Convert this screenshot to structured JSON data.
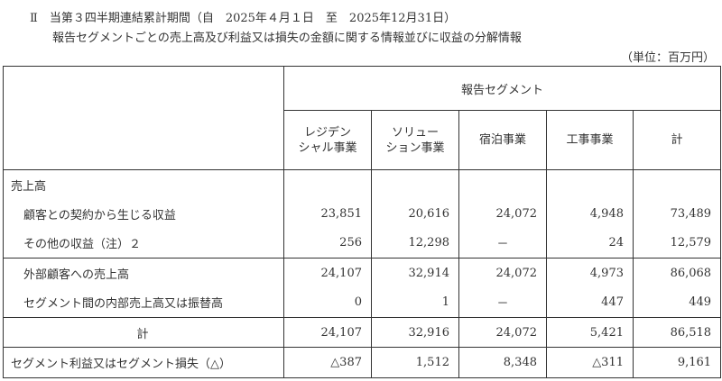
{
  "heading": {
    "line1": "Ⅱ　当第３四半期連結累計期間（自　2025年４月１日　至　2025年12月31日）",
    "line2": "報告セグメントごとの売上高及び利益又は損失の金額に関する情報並びに収益の分解情報",
    "unit": "（単位：百万円）"
  },
  "table": {
    "group_header": "報告セグメント",
    "columns": [
      "レジデン\nシャル事業",
      "ソリュー\nション事業",
      "宿泊事業",
      "工事事業",
      "計"
    ],
    "section_label": "売上高",
    "rows": [
      {
        "label": "顧客との契約から生じる収益",
        "values": [
          "23,851",
          "20,616",
          "24,072",
          "4,948",
          "73,489"
        ]
      },
      {
        "label": "その他の収益（注）２",
        "values": [
          "256",
          "12,298",
          "－",
          "24",
          "12,579"
        ]
      },
      {
        "label": "外部顧客への売上高",
        "values": [
          "24,107",
          "32,914",
          "24,072",
          "4,973",
          "86,068"
        ]
      },
      {
        "label": "セグメント間の内部売上高又は振替高",
        "values": [
          "0",
          "1",
          "－",
          "447",
          "449"
        ]
      },
      {
        "label": "計",
        "values": [
          "24,107",
          "32,916",
          "24,072",
          "5,421",
          "86,518"
        ]
      },
      {
        "label": "セグメント利益又はセグメント損失（△）",
        "values": [
          "△387",
          "1,512",
          "8,348",
          "△311",
          "9,161"
        ]
      }
    ]
  }
}
